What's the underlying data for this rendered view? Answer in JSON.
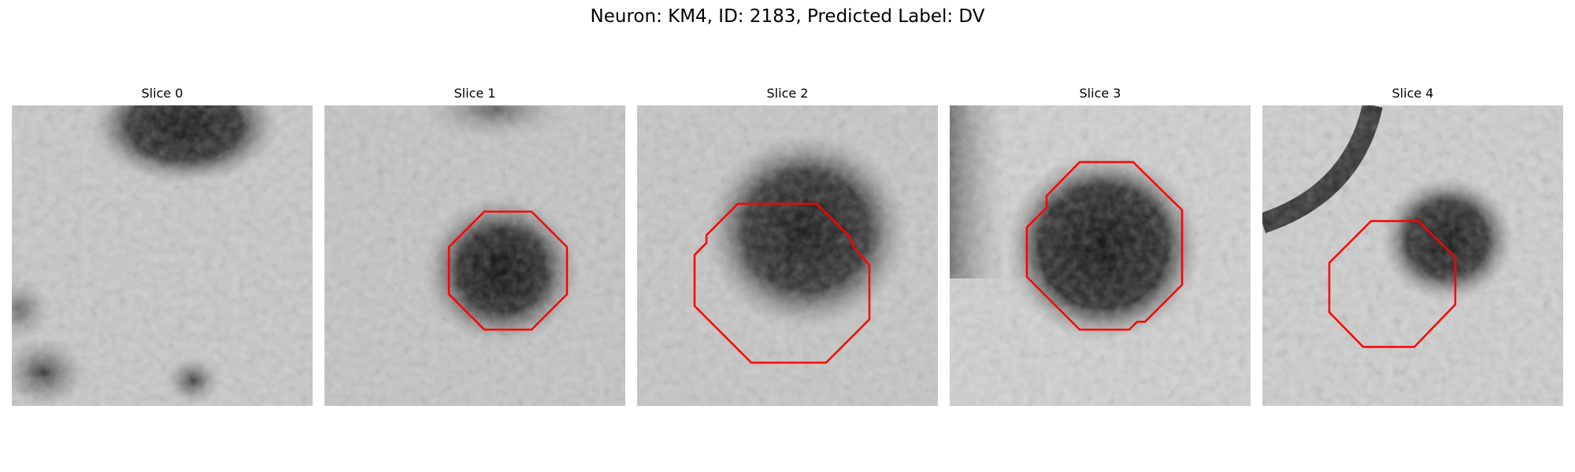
{
  "figure": {
    "title": "Neuron: KM4, ID: 2183, Predicted Label: DV"
  },
  "panels": [
    {
      "title": "Slice 0",
      "overlay_polygon": false,
      "image": "grayscale microscopy patch with dark blob at top center and small dark spots at lower left"
    },
    {
      "title": "Slice 1",
      "overlay_polygon": true,
      "image": "grayscale microscopy patch with dark cell body at center right"
    },
    {
      "title": "Slice 2",
      "overlay_polygon": true,
      "image": "grayscale microscopy patch with large dark cell body upper center"
    },
    {
      "title": "Slice 3",
      "overlay_polygon": true,
      "image": "grayscale microscopy patch with large dark round cell body at center"
    },
    {
      "title": "Slice 4",
      "overlay_polygon": true,
      "image": "grayscale microscopy patch with dark curved process at upper left and dark blob at right"
    }
  ],
  "colors": {
    "contour": "#ff0000",
    "background": "#ffffff"
  }
}
